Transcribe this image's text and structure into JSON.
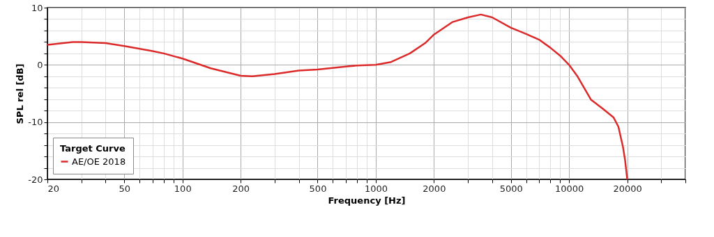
{
  "chart_data": {
    "type": "line",
    "xlabel": "Frequency [Hz]",
    "ylabel": "SPL rel [dB]",
    "legend_title": "Target Curve",
    "log": "x",
    "grid": true,
    "legend": "bottom left",
    "line_style": "solid",
    "marker": "none",
    "xlim": [
      20,
      40000
    ],
    "ylim": [
      -20,
      10
    ],
    "xticks": [
      20,
      {
        "value": 30,
        "label": null
      },
      {
        "value": 40,
        "label": null
      },
      50,
      {
        "value": 60,
        "label": null
      },
      {
        "value": 70,
        "label": null
      },
      {
        "value": 80,
        "label": null
      },
      {
        "value": 90,
        "label": null
      },
      100,
      200,
      {
        "value": 300,
        "label": null
      },
      {
        "value": 400,
        "label": null
      },
      500,
      {
        "value": 600,
        "label": null
      },
      {
        "value": 700,
        "label": null
      },
      {
        "value": 800,
        "label": null
      },
      {
        "value": 900,
        "label": null
      },
      1000,
      2000,
      {
        "value": 3000,
        "label": null
      },
      {
        "value": 4000,
        "label": null
      },
      5000,
      {
        "value": 6000,
        "label": null
      },
      {
        "value": 7000,
        "label": null
      },
      {
        "value": 8000,
        "label": null
      },
      {
        "value": 9000,
        "label": null
      },
      10000,
      20000,
      {
        "value": 30000,
        "label": null
      },
      {
        "value": 40000,
        "label": null
      }
    ],
    "yticks": [
      -20,
      {
        "value": -18,
        "label": null
      },
      {
        "value": -16,
        "label": null
      },
      {
        "value": -14,
        "label": null
      },
      {
        "value": -12,
        "label": null
      },
      -10,
      {
        "value": -8,
        "label": null
      },
      {
        "value": -6,
        "label": null
      },
      {
        "value": -4,
        "label": null
      },
      {
        "value": -2,
        "label": null
      },
      0,
      {
        "value": 2,
        "label": null
      },
      {
        "value": 4,
        "label": null
      },
      {
        "value": 6,
        "label": null
      },
      {
        "value": 8,
        "label": null
      },
      10
    ],
    "x": [
      20,
      27,
      30,
      40,
      50,
      70,
      80,
      100,
      140,
      200,
      230,
      300,
      400,
      500,
      700,
      800,
      1000,
      1200,
      1500,
      1800,
      2000,
      2500,
      3000,
      3500,
      4000,
      5000,
      6000,
      7000,
      8000,
      9000,
      10000,
      11000,
      13000,
      15000,
      17000,
      18000,
      19000,
      19500,
      20000
    ],
    "series": [
      {
        "name": "AE/OE 2018",
        "color": "#dc2a2a",
        "values": [
          3.5,
          4.0,
          4.0,
          3.8,
          3.3,
          2.4,
          2.0,
          1.1,
          -0.6,
          -1.9,
          -2.0,
          -1.6,
          -1.0,
          -0.8,
          -0.3,
          -0.1,
          0.0,
          0.5,
          2.0,
          3.8,
          5.3,
          7.5,
          8.3,
          8.8,
          8.3,
          6.5,
          5.4,
          4.4,
          3.0,
          1.6,
          0.0,
          -1.9,
          -6.1,
          -7.7,
          -9.2,
          -10.8,
          -14.3,
          -16.7,
          -20.0
        ]
      }
    ]
  }
}
